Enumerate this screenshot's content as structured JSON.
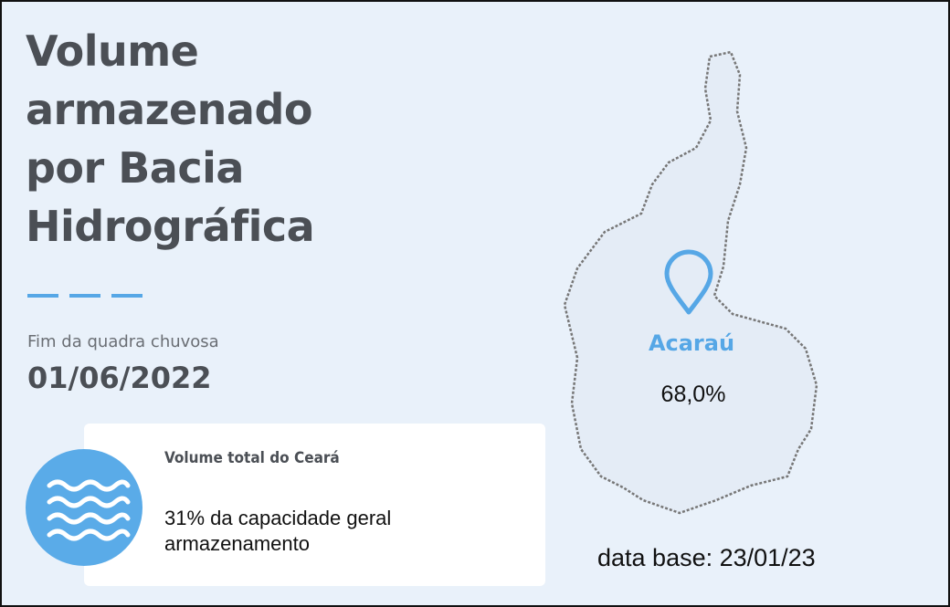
{
  "header": {
    "title_lines": [
      "Volume",
      "armazenado",
      "por Bacia",
      "Hidrográfica"
    ],
    "subtitle": "Fim da quadra chuvosa",
    "date": "01/06/2022"
  },
  "card": {
    "title": "Volume total do Ceará",
    "text_lines": [
      "31% da capacidade geral",
      "armazenamento"
    ]
  },
  "map": {
    "region": "Acaraú",
    "value": "68,0%",
    "base_date": "data base: 23/01/23"
  }
}
